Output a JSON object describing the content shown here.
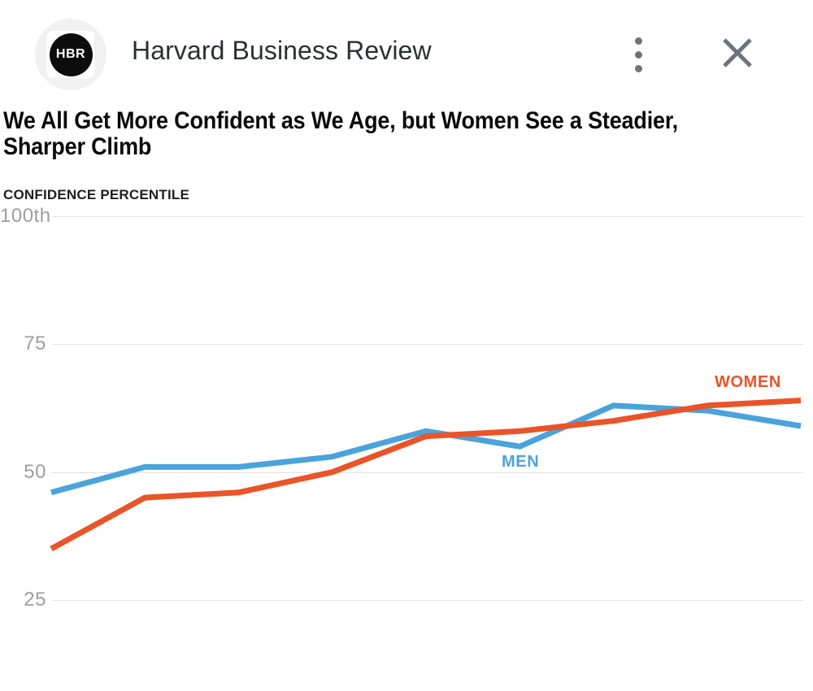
{
  "header": {
    "source_name": "Harvard Business Review",
    "logo_text": "HBR",
    "menu_icon": "kebab-menu-icon",
    "close_icon": "close-x-icon"
  },
  "article": {
    "headline": "We All Get More Confident as We Age, but Women See a Steadier, Sharper Climb",
    "headline_lines": [
      "We All Get More Confident as We Age, but Women See a Steadier,",
      "Sharper Climb"
    ]
  },
  "chart_data": {
    "type": "line",
    "title": "CONFIDENCE PERCENTILE",
    "y_axis": {
      "ticks": [
        {
          "value": 100,
          "label": "100th"
        },
        {
          "value": 75,
          "label": "75"
        },
        {
          "value": 50,
          "label": "50"
        },
        {
          "value": 25,
          "label": "25"
        }
      ],
      "visible_range_top": 100,
      "visible_range_bottom": 25
    },
    "x_axis": {
      "tick_labels_visible": false,
      "num_points": 9
    },
    "gridlines": true,
    "legend_position": "inline-labels-on-lines",
    "series": [
      {
        "name": "MEN",
        "color": "#4AA3DB",
        "values": [
          46,
          51,
          51,
          53,
          58,
          55,
          63,
          62,
          59
        ]
      },
      {
        "name": "WOMEN",
        "color": "#EB5328",
        "values": [
          35,
          45,
          46,
          50,
          57,
          58,
          60,
          63,
          64
        ]
      }
    ]
  },
  "colors": {
    "men_line": "#4AA3DB",
    "women_line": "#EB5328",
    "gridline": "#e1e1e1",
    "tick_text": "#9e9e9e",
    "icon_gray": "#6e737b",
    "logo_bg": "#0d0d0d"
  }
}
